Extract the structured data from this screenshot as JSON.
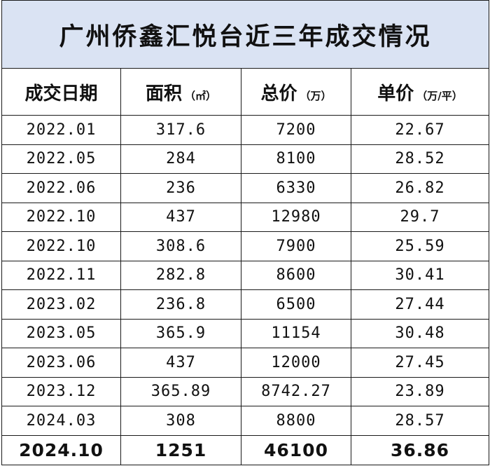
{
  "title": "广州侨鑫汇悦台近三年成交情况",
  "headers": [
    {
      "label": "成交日期",
      "unit": ""
    },
    {
      "label": "面积",
      "unit": "（㎡）"
    },
    {
      "label": "总价",
      "unit": "（万）"
    },
    {
      "label": "单价",
      "unit": "（万/平）"
    }
  ],
  "rows": [
    [
      "2022.01",
      "317.6",
      "7200",
      "22.67"
    ],
    [
      "2022.05",
      "284",
      "8100",
      "28.52"
    ],
    [
      "2022.06",
      "236",
      "6330",
      "26.82"
    ],
    [
      "2022.10",
      "437",
      "12980",
      "29.7"
    ],
    [
      "2022.10",
      "308.6",
      "7900",
      "25.59"
    ],
    [
      "2022.11",
      "282.8",
      "8600",
      "30.41"
    ],
    [
      "2023.02",
      "236.8",
      "6500",
      "27.44"
    ],
    [
      "2023.05",
      "365.9",
      "11154",
      "30.48"
    ],
    [
      "2023.06",
      "437",
      "12000",
      "27.45"
    ],
    [
      "2023.12",
      "365.89",
      "8742.27",
      "23.89"
    ],
    [
      "2024.03",
      "308",
      "8800",
      "28.57"
    ]
  ],
  "last_row": [
    "2024.10",
    "1251",
    "46100",
    "36.86"
  ]
}
